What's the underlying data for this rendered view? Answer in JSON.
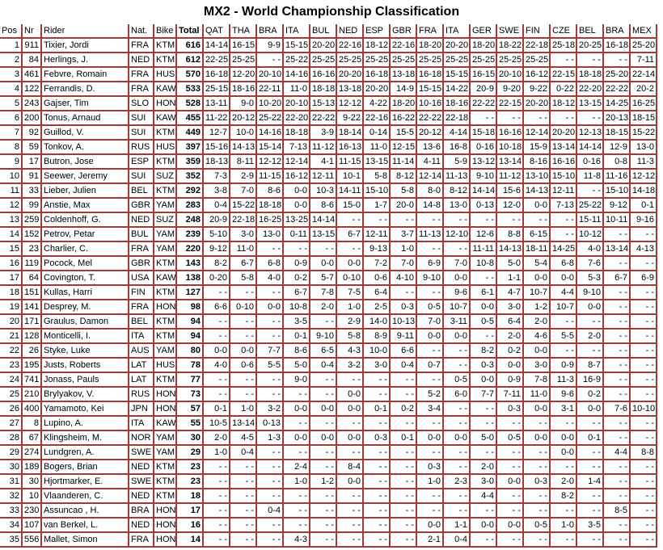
{
  "title": "MX2 - World Championship Classification",
  "columns": {
    "pos": "Pos",
    "nr": "Nr",
    "rider": "Rider",
    "nat": "Nat.",
    "bike": "Bike",
    "total": "Total"
  },
  "races": [
    "QAT",
    "THA",
    "BRA",
    "ITA",
    "BUL",
    "NED",
    "ESP",
    "GBR",
    "FRA",
    "ITA",
    "GER",
    "SWE",
    "FIN",
    "CZE",
    "BEL",
    "BRA",
    "MEX"
  ],
  "rows": [
    {
      "pos": "1",
      "nr": "911",
      "rider": "Tixier, Jordi",
      "nat": "FRA",
      "bike": "KTM",
      "total": "616",
      "results": [
        "14-14",
        "16-15",
        "9-9",
        "15-15",
        "20-20",
        "22-16",
        "18-12",
        "22-16",
        "18-20",
        "20-20",
        "18-20",
        "18-22",
        "22-18",
        "25-18",
        "20-25",
        "16-18",
        "25-20"
      ]
    },
    {
      "pos": "2",
      "nr": "84",
      "rider": "Herlings, J.",
      "nat": "NED",
      "bike": "KTM",
      "total": "612",
      "results": [
        "22-25",
        "25-25",
        "- -",
        "25-22",
        "25-25",
        "25-25",
        "25-25",
        "25-25",
        "25-25",
        "25-25",
        "25-25",
        "25-25",
        "25-25",
        "- -",
        "- -",
        "- -",
        "7-11"
      ]
    },
    {
      "pos": "3",
      "nr": "461",
      "rider": "Febvre, Romain",
      "nat": "FRA",
      "bike": "HUS",
      "total": "570",
      "results": [
        "16-18",
        "12-20",
        "20-10",
        "14-16",
        "16-16",
        "20-20",
        "16-18",
        "13-18",
        "16-18",
        "15-15",
        "16-15",
        "20-10",
        "16-12",
        "22-15",
        "18-18",
        "25-20",
        "22-14"
      ]
    },
    {
      "pos": "4",
      "nr": "122",
      "rider": "Ferrandis, D.",
      "nat": "FRA",
      "bike": "KAW",
      "total": "533",
      "results": [
        "25-15",
        "18-16",
        "22-11",
        "11-0",
        "18-18",
        "13-18",
        "20-20",
        "14-9",
        "15-15",
        "14-22",
        "20-9",
        "9-20",
        "9-22",
        "0-22",
        "22-20",
        "22-22",
        "20-2"
      ]
    },
    {
      "pos": "5",
      "nr": "243",
      "rider": "Gajser, Tim",
      "nat": "SLO",
      "bike": "HON",
      "total": "528",
      "results": [
        "13-11",
        "9-0",
        "10-20",
        "20-10",
        "15-13",
        "12-12",
        "4-22",
        "18-20",
        "10-16",
        "18-16",
        "22-22",
        "22-15",
        "20-20",
        "18-12",
        "13-15",
        "14-25",
        "16-25"
      ]
    },
    {
      "pos": "6",
      "nr": "200",
      "rider": "Tonus, Arnaud",
      "nat": "SUI",
      "bike": "KAW",
      "total": "455",
      "results": [
        "11-22",
        "20-12",
        "25-22",
        "22-20",
        "22-22",
        "9-22",
        "22-16",
        "16-22",
        "22-22",
        "22-18",
        "- -",
        "- -",
        "- -",
        "- -",
        "- -",
        "20-13",
        "18-15"
      ]
    },
    {
      "pos": "7",
      "nr": "92",
      "rider": "Guillod, V.",
      "nat": "SUI",
      "bike": "KTM",
      "total": "449",
      "results": [
        "12-7",
        "10-0",
        "14-16",
        "18-18",
        "3-9",
        "18-14",
        "0-14",
        "15-5",
        "20-12",
        "4-14",
        "15-18",
        "16-16",
        "12-14",
        "20-20",
        "12-13",
        "18-15",
        "15-22"
      ]
    },
    {
      "pos": "8",
      "nr": "59",
      "rider": "Tonkov, A.",
      "nat": "RUS",
      "bike": "HUS",
      "total": "397",
      "results": [
        "15-16",
        "14-13",
        "15-14",
        "7-13",
        "11-12",
        "16-13",
        "11-0",
        "12-15",
        "13-6",
        "16-8",
        "0-16",
        "10-18",
        "15-9",
        "13-14",
        "14-14",
        "12-9",
        "13-0"
      ]
    },
    {
      "pos": "9",
      "nr": "17",
      "rider": "Butron, Jose",
      "nat": "ESP",
      "bike": "KTM",
      "total": "359",
      "results": [
        "18-13",
        "8-11",
        "12-12",
        "12-14",
        "4-1",
        "11-15",
        "13-15",
        "11-14",
        "4-11",
        "5-9",
        "13-12",
        "13-14",
        "8-16",
        "16-16",
        "0-16",
        "0-8",
        "11-3"
      ]
    },
    {
      "pos": "10",
      "nr": "91",
      "rider": "Seewer, Jeremy",
      "nat": "SUI",
      "bike": "SUZ",
      "total": "352",
      "results": [
        "7-3",
        "2-9",
        "11-15",
        "16-12",
        "12-11",
        "10-1",
        "5-8",
        "8-12",
        "12-14",
        "11-13",
        "9-10",
        "11-12",
        "13-10",
        "15-10",
        "11-8",
        "11-16",
        "12-12"
      ]
    },
    {
      "pos": "11",
      "nr": "33",
      "rider": "Lieber, Julien",
      "nat": "BEL",
      "bike": "KTM",
      "total": "292",
      "results": [
        "3-8",
        "7-0",
        "8-6",
        "0-0",
        "10-3",
        "14-11",
        "15-10",
        "5-8",
        "8-0",
        "8-12",
        "14-14",
        "15-6",
        "14-13",
        "12-11",
        "- -",
        "15-10",
        "14-18"
      ]
    },
    {
      "pos": "12",
      "nr": "99",
      "rider": "Anstie, Max",
      "nat": "GBR",
      "bike": "YAM",
      "total": "283",
      "results": [
        "0-4",
        "15-22",
        "18-18",
        "0-0",
        "8-6",
        "15-0",
        "1-7",
        "20-0",
        "14-8",
        "13-0",
        "0-13",
        "12-0",
        "0-0",
        "7-13",
        "25-22",
        "9-12",
        "0-1"
      ]
    },
    {
      "pos": "13",
      "nr": "259",
      "rider": "Coldenhoff, G.",
      "nat": "NED",
      "bike": "SUZ",
      "total": "248",
      "results": [
        "20-9",
        "22-18",
        "16-25",
        "13-25",
        "14-14",
        "- -",
        "- -",
        "- -",
        "- -",
        "- -",
        "- -",
        "- -",
        "- -",
        "- -",
        "15-11",
        "10-11",
        "9-16"
      ]
    },
    {
      "pos": "14",
      "nr": "152",
      "rider": "Petrov, Petar",
      "nat": "BUL",
      "bike": "YAM",
      "total": "239",
      "results": [
        "5-10",
        "3-0",
        "13-0",
        "0-11",
        "13-15",
        "6-7",
        "12-11",
        "3-7",
        "11-13",
        "12-10",
        "12-6",
        "8-8",
        "6-15",
        "- -",
        "10-12",
        "- -",
        "- -"
      ]
    },
    {
      "pos": "15",
      "nr": "23",
      "rider": "Charlier, C.",
      "nat": "FRA",
      "bike": "YAM",
      "total": "220",
      "results": [
        "9-12",
        "11-0",
        "- -",
        "- -",
        "- -",
        "- -",
        "9-13",
        "1-0",
        "- -",
        "- -",
        "11-11",
        "14-13",
        "18-11",
        "14-25",
        "4-0",
        "13-14",
        "4-13"
      ]
    },
    {
      "pos": "16",
      "nr": "119",
      "rider": "Pocock, Mel",
      "nat": "GBR",
      "bike": "KTM",
      "total": "143",
      "results": [
        "8-2",
        "6-7",
        "6-8",
        "0-9",
        "0-0",
        "0-0",
        "7-2",
        "7-0",
        "6-9",
        "7-0",
        "10-8",
        "5-0",
        "5-4",
        "6-8",
        "7-6",
        "- -",
        "- -"
      ]
    },
    {
      "pos": "17",
      "nr": "64",
      "rider": "Covington, T.",
      "nat": "USA",
      "bike": "KAW",
      "total": "138",
      "results": [
        "0-20",
        "5-8",
        "4-0",
        "0-2",
        "5-7",
        "0-10",
        "0-6",
        "4-10",
        "9-10",
        "0-0",
        "- -",
        "1-1",
        "0-0",
        "0-0",
        "5-3",
        "6-7",
        "6-9"
      ]
    },
    {
      "pos": "18",
      "nr": "151",
      "rider": "Kullas, Harri",
      "nat": "FIN",
      "bike": "KTM",
      "total": "127",
      "results": [
        "- -",
        "- -",
        "- -",
        "6-7",
        "7-8",
        "7-5",
        "6-4",
        "- -",
        "- -",
        "9-6",
        "6-1",
        "4-7",
        "10-7",
        "4-4",
        "9-10",
        "- -",
        "- -"
      ]
    },
    {
      "pos": "19",
      "nr": "141",
      "rider": "Desprey, M.",
      "nat": "FRA",
      "bike": "HON",
      "total": "98",
      "results": [
        "6-6",
        "0-10",
        "0-0",
        "10-8",
        "2-0",
        "1-0",
        "2-5",
        "0-3",
        "0-5",
        "10-7",
        "0-0",
        "3-0",
        "1-2",
        "10-7",
        "0-0",
        "- -",
        "- -"
      ]
    },
    {
      "pos": "20",
      "nr": "171",
      "rider": "Graulus, Damon",
      "nat": "BEL",
      "bike": "KTM",
      "total": "94",
      "results": [
        "- -",
        "- -",
        "- -",
        "3-5",
        "- -",
        "2-9",
        "14-0",
        "10-13",
        "7-0",
        "3-11",
        "0-5",
        "6-4",
        "2-0",
        "- -",
        "- -",
        "- -",
        "- -"
      ]
    },
    {
      "pos": "21",
      "nr": "128",
      "rider": "Monticelli, I.",
      "nat": "ITA",
      "bike": "KTM",
      "total": "94",
      "results": [
        "- -",
        "- -",
        "- -",
        "0-1",
        "9-10",
        "5-8",
        "8-9",
        "9-11",
        "0-0",
        "0-0",
        "- -",
        "2-0",
        "4-6",
        "5-5",
        "2-0",
        "- -",
        "- -"
      ]
    },
    {
      "pos": "22",
      "nr": "26",
      "rider": "Styke, Luke",
      "nat": "AUS",
      "bike": "YAM",
      "total": "80",
      "results": [
        "0-0",
        "0-0",
        "7-7",
        "8-6",
        "6-5",
        "4-3",
        "10-0",
        "6-6",
        "- -",
        "- -",
        "8-2",
        "0-2",
        "0-0",
        "- -",
        "- -",
        "- -",
        "- -"
      ]
    },
    {
      "pos": "23",
      "nr": "195",
      "rider": "Justs, Roberts",
      "nat": "LAT",
      "bike": "HUS",
      "total": "78",
      "results": [
        "4-0",
        "0-6",
        "5-5",
        "5-0",
        "0-4",
        "3-2",
        "3-0",
        "0-4",
        "0-7",
        "- -",
        "0-3",
        "0-0",
        "3-0",
        "0-9",
        "8-7",
        "- -",
        "- -"
      ]
    },
    {
      "pos": "24",
      "nr": "741",
      "rider": "Jonass, Pauls",
      "nat": "LAT",
      "bike": "KTM",
      "total": "77",
      "results": [
        "- -",
        "- -",
        "- -",
        "9-0",
        "- -",
        "- -",
        "- -",
        "- -",
        "- -",
        "0-5",
        "0-0",
        "0-9",
        "7-8",
        "11-3",
        "16-9",
        "- -",
        "- -"
      ]
    },
    {
      "pos": "25",
      "nr": "210",
      "rider": "Brylyakov, V.",
      "nat": "RUS",
      "bike": "HON",
      "total": "73",
      "results": [
        "- -",
        "- -",
        "- -",
        "- -",
        "- -",
        "0-0",
        "- -",
        "- -",
        "5-2",
        "6-0",
        "7-7",
        "7-11",
        "11-0",
        "9-6",
        "0-2",
        "- -",
        "- -"
      ]
    },
    {
      "pos": "26",
      "nr": "400",
      "rider": "Yamamoto, Kei",
      "nat": "JPN",
      "bike": "HON",
      "total": "57",
      "results": [
        "0-1",
        "1-0",
        "3-2",
        "0-0",
        "0-0",
        "0-0",
        "0-1",
        "0-2",
        "3-4",
        "- -",
        "- -",
        "0-3",
        "0-0",
        "3-1",
        "0-0",
        "7-6",
        "10-10"
      ]
    },
    {
      "pos": "27",
      "nr": "8",
      "rider": "Lupino, A.",
      "nat": "ITA",
      "bike": "KAW",
      "total": "55",
      "results": [
        "10-5",
        "13-14",
        "0-13",
        "- -",
        "- -",
        "- -",
        "- -",
        "- -",
        "- -",
        "- -",
        "- -",
        "- -",
        "- -",
        "- -",
        "- -",
        "- -",
        "- -"
      ]
    },
    {
      "pos": "28",
      "nr": "67",
      "rider": "Klingsheim, M.",
      "nat": "NOR",
      "bike": "YAM",
      "total": "30",
      "results": [
        "2-0",
        "4-5",
        "1-3",
        "0-0",
        "0-0",
        "0-0",
        "0-3",
        "0-1",
        "0-0",
        "0-0",
        "5-0",
        "0-5",
        "0-0",
        "0-0",
        "0-1",
        "- -",
        "- -"
      ]
    },
    {
      "pos": "29",
      "nr": "274",
      "rider": "Lundgren, A.",
      "nat": "SWE",
      "bike": "YAM",
      "total": "29",
      "results": [
        "1-0",
        "0-4",
        "- -",
        "- -",
        "- -",
        "- -",
        "- -",
        "- -",
        "- -",
        "- -",
        "- -",
        "- -",
        "- -",
        "0-0",
        "- -",
        "4-4",
        "8-8"
      ]
    },
    {
      "pos": "30",
      "nr": "189",
      "rider": "Bogers, Brian",
      "nat": "NED",
      "bike": "KTM",
      "total": "23",
      "results": [
        "- -",
        "- -",
        "- -",
        "2-4",
        "- -",
        "8-4",
        "- -",
        "- -",
        "0-3",
        "- -",
        "2-0",
        "- -",
        "- -",
        "- -",
        "- -",
        "- -",
        "- -"
      ]
    },
    {
      "pos": "31",
      "nr": "30",
      "rider": "Hjortmarker, E.",
      "nat": "SWE",
      "bike": "KTM",
      "total": "23",
      "results": [
        "- -",
        "- -",
        "- -",
        "1-0",
        "1-2",
        "0-0",
        "- -",
        "- -",
        "1-0",
        "2-3",
        "3-0",
        "0-0",
        "0-3",
        "2-0",
        "1-4",
        "- -",
        "- -"
      ]
    },
    {
      "pos": "32",
      "nr": "10",
      "rider": "Vlaanderen, C.",
      "nat": "NED",
      "bike": "KTM",
      "total": "18",
      "results": [
        "- -",
        "- -",
        "- -",
        "- -",
        "- -",
        "- -",
        "- -",
        "- -",
        "- -",
        "- -",
        "4-4",
        "- -",
        "- -",
        "8-2",
        "- -",
        "- -",
        "- -"
      ]
    },
    {
      "pos": "33",
      "nr": "230",
      "rider": "Assuncao , H.",
      "nat": "BRA",
      "bike": "HON",
      "total": "17",
      "results": [
        "- -",
        "- -",
        "0-4",
        "- -",
        "- -",
        "- -",
        "- -",
        "- -",
        "- -",
        "- -",
        "- -",
        "- -",
        "- -",
        "- -",
        "- -",
        "8-5",
        "- -"
      ]
    },
    {
      "pos": "34",
      "nr": "107",
      "rider": "van Berkel, L.",
      "nat": "NED",
      "bike": "HON",
      "total": "16",
      "results": [
        "- -",
        "- -",
        "- -",
        "- -",
        "- -",
        "- -",
        "- -",
        "- -",
        "0-0",
        "1-1",
        "0-0",
        "0-0",
        "0-5",
        "1-0",
        "3-5",
        "- -",
        "- -"
      ]
    },
    {
      "pos": "35",
      "nr": "556",
      "rider": "Mallet, Simon",
      "nat": "FRA",
      "bike": "HON",
      "total": "14",
      "results": [
        "- -",
        "- -",
        "- -",
        "4-3",
        "- -",
        "- -",
        "- -",
        "- -",
        "2-1",
        "0-4",
        "- -",
        "- -",
        "- -",
        "- -",
        "- -",
        "- -",
        "- -"
      ]
    }
  ]
}
